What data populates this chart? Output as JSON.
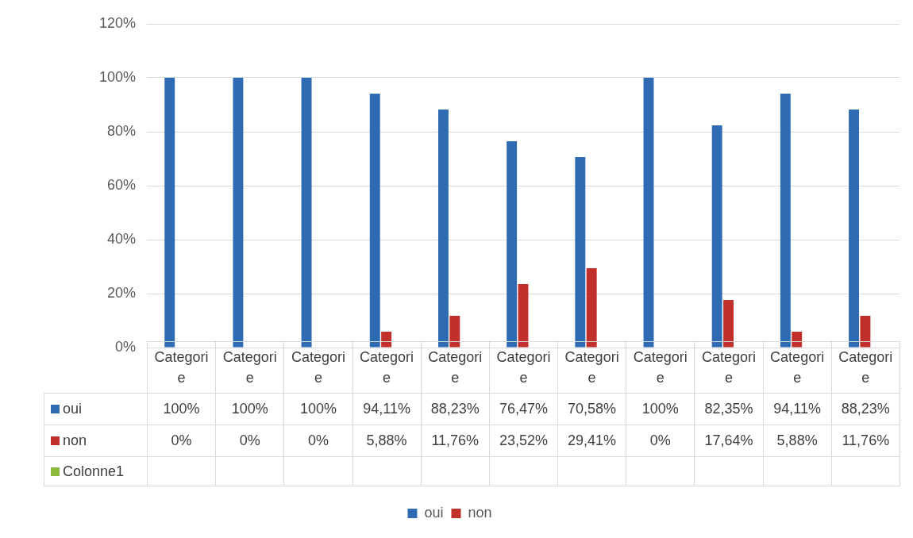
{
  "chart_data": {
    "type": "bar",
    "categories": [
      "Categorie",
      "Categorie",
      "Categorie",
      "Categorie",
      "Categorie",
      "Categorie",
      "Categorie",
      "Categorie",
      "Categorie",
      "Categorie",
      "Categorie"
    ],
    "series": [
      {
        "name": "oui",
        "color": "#2f6bb3",
        "values": [
          100,
          100,
          100,
          94.11,
          88.23,
          76.47,
          70.58,
          100,
          82.35,
          94.11,
          88.23
        ],
        "value_labels": [
          "100%",
          "100%",
          "100%",
          "94,11%",
          "88,23%",
          "76,47%",
          "70,58%",
          "100%",
          "82,35%",
          "94,11%",
          "88,23%"
        ]
      },
      {
        "name": "non",
        "color": "#c2302c",
        "values": [
          0,
          0,
          0,
          5.88,
          11.76,
          23.52,
          29.41,
          0,
          17.64,
          5.88,
          11.76
        ],
        "value_labels": [
          "0%",
          "0%",
          "0%",
          "5,88%",
          "11,76%",
          "23,52%",
          "29,41%",
          "0%",
          "17,64%",
          "5,88%",
          "11,76%"
        ]
      },
      {
        "name": "Colonne1",
        "color": "#8dbb3c",
        "values": [
          null,
          null,
          null,
          null,
          null,
          null,
          null,
          null,
          null,
          null,
          null
        ],
        "value_labels": [
          null,
          null,
          null,
          null,
          null,
          null,
          null,
          null,
          null,
          null,
          null
        ]
      }
    ],
    "ylim": [
      0,
      120
    ],
    "yticks": [
      {
        "value": 0,
        "label": "0%"
      },
      {
        "value": 20,
        "label": "20%"
      },
      {
        "value": 40,
        "label": "40%"
      },
      {
        "value": 60,
        "label": "60%"
      },
      {
        "value": 80,
        "label": "80%"
      },
      {
        "value": 100,
        "label": "100%"
      },
      {
        "value": 120,
        "label": "120%"
      }
    ],
    "grid": "y",
    "legend": "bottom"
  }
}
